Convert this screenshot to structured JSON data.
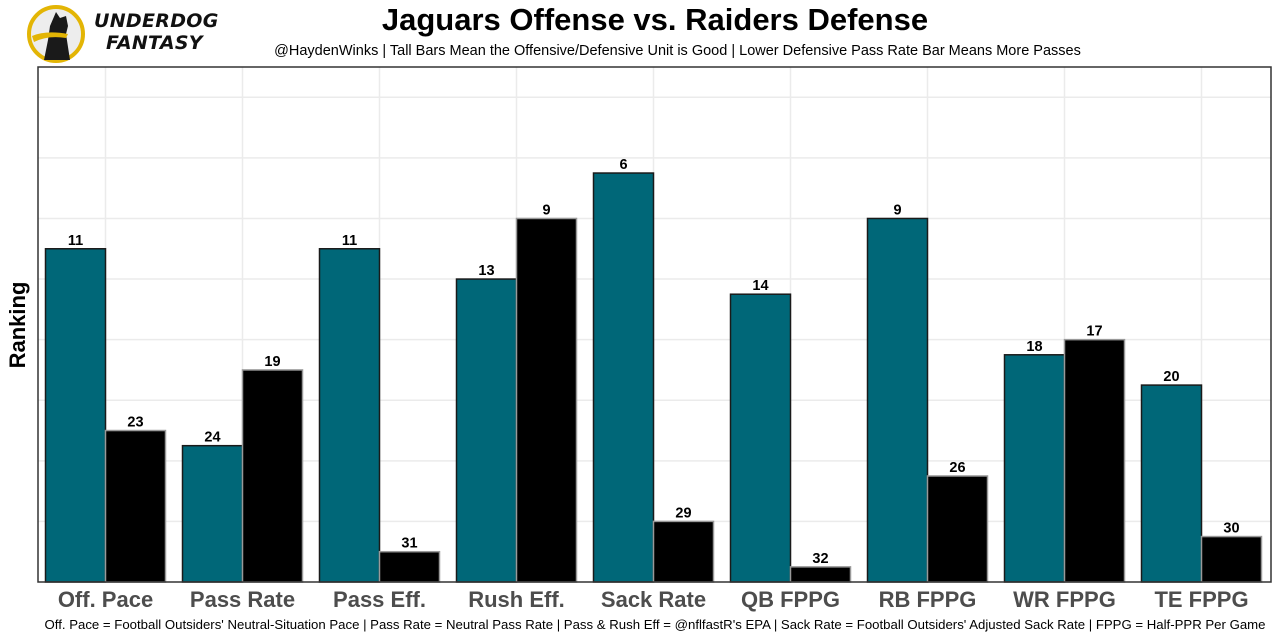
{
  "brand": {
    "line1": "UNDERDOG",
    "line2": "FANTASY",
    "logo_icon": "dog-silhouette-icon",
    "colors": {
      "ring": "#e3b505",
      "dog": "#1a1a1a",
      "bg": "#ededed"
    }
  },
  "chart_data": {
    "type": "bar",
    "title": "Jaguars Offense vs. Raiders Defense",
    "subtitle": "@HaydenWinks | Tall Bars Mean the Offensive/Defensive Unit is Good | Lower Defensive Pass Rate Bar Means More Passes",
    "caption": "Off. Pace = Football Outsiders' Neutral-Situation Pace | Pass Rate = Neutral Pass Rate | Pass & Rush Eff = @nflfastR's EPA | Sack Rate = Football Outsiders' Adjusted Sack Rate | FPPG = Half-PPR Per Game",
    "xlabel": "",
    "ylabel": "Ranking",
    "bar_height_rule": "bar height = 33 - rank (rank 1 tallest)",
    "ylim": [
      0,
      34
    ],
    "grid": true,
    "legend": "none",
    "categories": [
      "Off. Pace",
      "Pass Rate",
      "Pass Eff.",
      "Rush Eff.",
      "Sack Rate",
      "QB FPPG",
      "RB FPPG",
      "WR FPPG",
      "TE FPPG"
    ],
    "series": [
      {
        "name": "Jaguars Offense",
        "color": "#006778",
        "values": [
          11,
          24,
          11,
          13,
          6,
          14,
          9,
          18,
          20
        ]
      },
      {
        "name": "Raiders Defense",
        "color": "#000000",
        "values": [
          23,
          19,
          31,
          9,
          29,
          32,
          26,
          17,
          30
        ]
      }
    ]
  }
}
